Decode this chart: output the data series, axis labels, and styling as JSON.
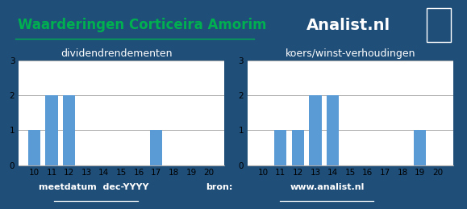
{
  "title": "Waarderingen Corticeira Amorim",
  "analist_text": "Analist.nl",
  "bg_color": "#1f4e79",
  "chart_bg": "#ffffff",
  "bar_color": "#5b9bd5",
  "left_title": "dividendrendementen",
  "right_title": "koers/winst-verhoudingen",
  "footer_left": "meetdatum  dec-YYYY",
  "footer_right": "bron:",
  "footer_link": "www.analist.nl",
  "x_labels": [
    "10",
    "11",
    "12",
    "13",
    "14",
    "15",
    "16",
    "17",
    "18",
    "19",
    "20"
  ],
  "div_values": [
    1,
    2,
    2,
    0,
    0,
    0,
    0,
    1,
    0,
    0,
    0
  ],
  "kw_values": [
    0,
    1,
    1,
    2,
    2,
    0,
    0,
    0,
    0,
    1,
    0
  ],
  "ylim": [
    0,
    3
  ],
  "yticks": [
    0,
    1,
    2,
    3
  ],
  "title_color": "#00b050",
  "title_fontsize": 12,
  "subtitle_fontsize": 9,
  "bar_width": 0.7,
  "grid_color": "#aaaaaa",
  "tick_fontsize": 7.5
}
